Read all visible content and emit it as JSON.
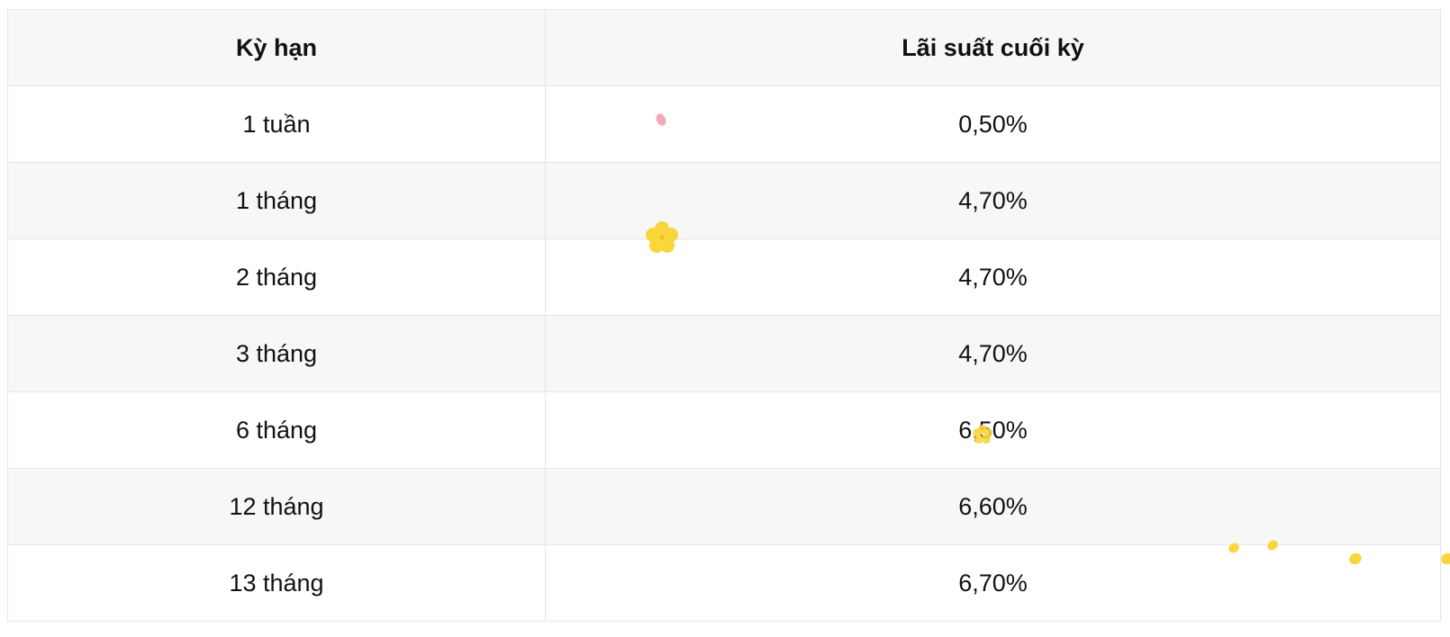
{
  "table": {
    "headers": [
      "Kỳ hạn",
      "Lãi suất cuối kỳ"
    ],
    "rows": [
      [
        "1 tuần",
        "0,50%"
      ],
      [
        "1 tháng",
        "4,70%"
      ],
      [
        "2 tháng",
        "4,70%"
      ],
      [
        "3 tháng",
        "4,70%"
      ],
      [
        "6 tháng",
        "6,50%"
      ],
      [
        "12 tháng",
        "6,60%"
      ],
      [
        "13 tháng",
        "6,70%"
      ]
    ]
  },
  "colors": {
    "header_bg": "#f7f7f7",
    "stripe_bg": "#f7f7f7",
    "border": "#e6e6e6",
    "petal_pink": "#f4a7b9",
    "flower_yellow": "#f9d73a"
  }
}
